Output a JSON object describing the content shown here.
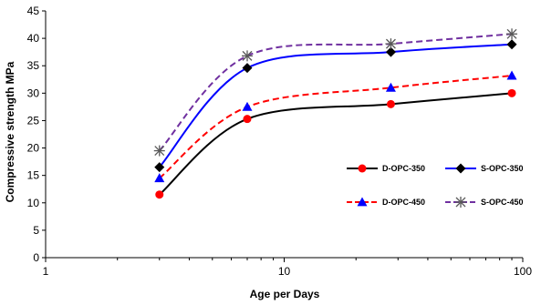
{
  "chart_data": {
    "type": "line",
    "xlabel": "Age per Days",
    "ylabel": "Compressive strength MPa",
    "xscale": "log",
    "xlim": [
      1,
      100
    ],
    "ylim": [
      0,
      45
    ],
    "xticks": [
      "1",
      "10",
      "100"
    ],
    "yticks": [
      "0",
      "5",
      "10",
      "15",
      "20",
      "25",
      "30",
      "35",
      "40",
      "45"
    ],
    "grid": false,
    "legend_position": "right, inside plot area",
    "series": [
      {
        "name": "D-OPC-350",
        "color": "#000000",
        "marker_color": "#ff0000",
        "marker": "circle",
        "dash": "solid",
        "x": [
          3,
          7,
          28,
          90
        ],
        "values": [
          11.5,
          25.3,
          28.0,
          30.0
        ]
      },
      {
        "name": "S-OPC-350",
        "color": "#0000ff",
        "marker_color": "#000000",
        "marker": "diamond",
        "dash": "solid",
        "x": [
          3,
          7,
          28,
          90
        ],
        "values": [
          16.5,
          34.6,
          37.5,
          38.9
        ]
      },
      {
        "name": "D-OPC-450",
        "color": "#ff0000",
        "marker_color": "#0000ff",
        "marker": "triangle",
        "dash": "dashed",
        "x": [
          3,
          7,
          28,
          90
        ],
        "values": [
          14.5,
          27.5,
          31.0,
          33.2
        ]
      },
      {
        "name": "S-OPC-450",
        "color": "#7030a0",
        "marker_color": "#595959",
        "marker": "asterisk",
        "dash": "dashed",
        "x": [
          3,
          7,
          28,
          90
        ],
        "values": [
          19.5,
          36.8,
          39.0,
          40.8
        ]
      }
    ]
  }
}
